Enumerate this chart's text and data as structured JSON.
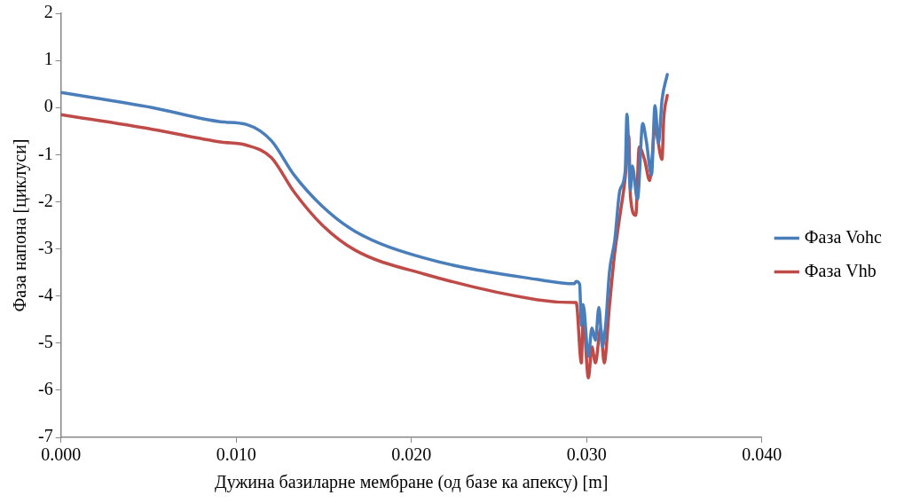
{
  "chart_data": {
    "type": "line",
    "xlabel": "Дужина базиларне мембране (од базе ка апексу) [m]",
    "ylabel": "Фаза напона [циклуси]",
    "xlim": [
      0,
      0.04
    ],
    "xticks": [
      {
        "value": 0,
        "label": "0.000"
      },
      {
        "value": 0.01,
        "label": "0.010"
      },
      {
        "value": 0.02,
        "label": "0.020"
      },
      {
        "value": 0.03,
        "label": "0.030"
      },
      {
        "value": 0.04,
        "label": "0.040"
      }
    ],
    "ylim": [
      -7,
      2
    ],
    "yticks": [
      -7,
      -6,
      -5,
      -4,
      -3,
      -2,
      -1,
      0,
      1,
      2
    ],
    "grid": false,
    "legend": "right",
    "marker": "none",
    "line_style": "solid",
    "series": [
      {
        "name": "Фаза Vohc",
        "color": "#4a7ebb",
        "x": [
          0,
          0.0052,
          0.0091,
          0.0106,
          0.012,
          0.0133,
          0.0149,
          0.0168,
          0.0207,
          0.0272,
          0.0293,
          0.0294,
          0.0296,
          0.0297,
          0.0298,
          0.0301,
          0.0303,
          0.0305,
          0.0307,
          0.0309,
          0.0311,
          0.0313,
          0.0316,
          0.0319,
          0.0322,
          0.0323,
          0.0325,
          0.0326,
          0.0329,
          0.0332,
          0.0334,
          0.0337,
          0.0339,
          0.0341,
          0.0343,
          0.0346
        ],
        "values": [
          0.32,
          0,
          -0.3,
          -0.36,
          -0.7,
          -1.43,
          -2.09,
          -2.63,
          -3.19,
          -3.65,
          -3.74,
          -3.69,
          -3.75,
          -4.62,
          -4.18,
          -5.28,
          -4.68,
          -4.94,
          -4.24,
          -5.08,
          -4.54,
          -3.49,
          -2.83,
          -1.75,
          -1.35,
          -0.14,
          -1.75,
          -1.24,
          -1.95,
          -0.34,
          -0.7,
          -1.43,
          0.04,
          -0.76,
          0.16,
          0.7
        ]
      },
      {
        "name": "Фаза Vhb",
        "color": "#be4b48",
        "x": [
          0,
          0.0052,
          0.0091,
          0.0106,
          0.012,
          0.0133,
          0.0149,
          0.0168,
          0.0207,
          0.0272,
          0.0293,
          0.0294,
          0.0297,
          0.0298,
          0.0301,
          0.0303,
          0.0305,
          0.0308,
          0.031,
          0.0313,
          0.0316,
          0.0319,
          0.0322,
          0.0324,
          0.0325,
          0.0328,
          0.033,
          0.0333,
          0.0336,
          0.0339,
          0.0343,
          0.0344,
          0.0346
        ],
        "values": [
          -0.15,
          -0.46,
          -0.73,
          -0.8,
          -1.06,
          -1.79,
          -2.49,
          -3.03,
          -3.53,
          -4.08,
          -4.14,
          -4.14,
          -5.42,
          -4.42,
          -5.74,
          -5.08,
          -5.42,
          -4.68,
          -5.42,
          -4.22,
          -3.09,
          -2.29,
          -1.49,
          -0.6,
          -1.89,
          -2.29,
          -0.84,
          -1.1,
          -1.55,
          -0.44,
          -1.1,
          -0.24,
          0.26
        ]
      }
    ]
  }
}
